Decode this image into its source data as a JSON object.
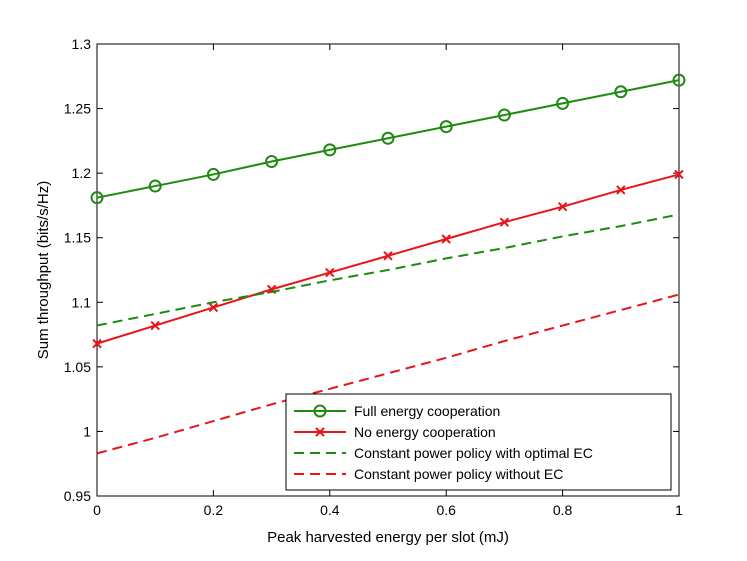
{
  "chart_data": {
    "type": "line",
    "title": "",
    "xlabel": "Peak harvested energy per slot (mJ)",
    "ylabel": "Sum throughput (bits/s/Hz)",
    "xlim": [
      0,
      1
    ],
    "ylim": [
      0.95,
      1.3
    ],
    "x_ticks": [
      "0",
      "0.2",
      "0.4",
      "0.6",
      "0.8",
      "1"
    ],
    "y_ticks": [
      "0.95",
      "1",
      "1.05",
      "1.1",
      "1.15",
      "1.2",
      "1.25",
      "1.3"
    ],
    "x": [
      0,
      0.1,
      0.2,
      0.3,
      0.4,
      0.5,
      0.6,
      0.7,
      0.8,
      0.9,
      1.0
    ],
    "series": [
      {
        "name": "Full energy cooperation",
        "color": "#1f8a12",
        "dash": "solid",
        "marker": "circle",
        "values": [
          1.181,
          1.19,
          1.199,
          1.209,
          1.218,
          1.227,
          1.236,
          1.245,
          1.254,
          1.263,
          1.272
        ]
      },
      {
        "name": "No energy cooperation",
        "color": "#e8141a",
        "dash": "solid",
        "marker": "x",
        "values": [
          1.068,
          1.082,
          1.096,
          1.11,
          1.123,
          1.136,
          1.149,
          1.162,
          1.174,
          1.187,
          1.199
        ]
      },
      {
        "name": "Constant power policy with optimal EC",
        "color": "#1f8a12",
        "dash": "dashed",
        "marker": "none",
        "values": [
          1.082,
          1.091,
          1.1,
          1.108,
          1.117,
          1.125,
          1.134,
          1.142,
          1.151,
          1.159,
          1.168
        ]
      },
      {
        "name": "Constant power policy without EC",
        "color": "#e8141a",
        "dash": "dashed",
        "marker": "none",
        "values": [
          0.983,
          0.995,
          1.008,
          1.021,
          1.033,
          1.045,
          1.057,
          1.07,
          1.082,
          1.094,
          1.106
        ]
      }
    ],
    "legend_position": "bottom-right",
    "grid": false
  }
}
